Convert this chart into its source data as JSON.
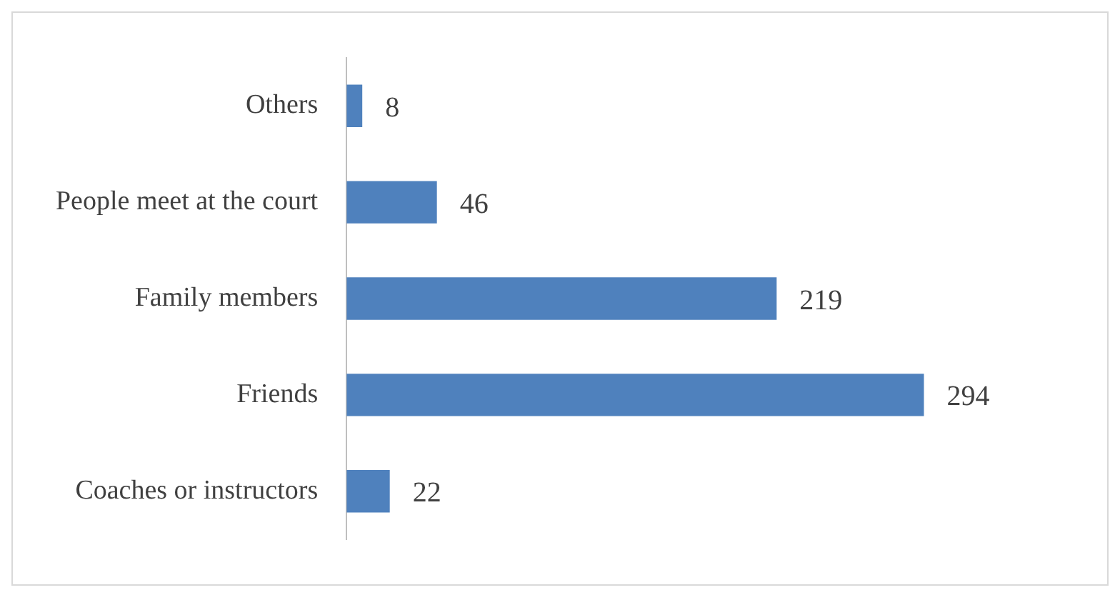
{
  "chart_data": {
    "type": "bar",
    "orientation": "horizontal",
    "categories": [
      "Others",
      "People meet at the court",
      "Family members",
      "Friends",
      "Coaches or instructors"
    ],
    "values": [
      8,
      46,
      219,
      294,
      22
    ],
    "color": "#4f81bd",
    "data_labels": true,
    "legend": false
  }
}
